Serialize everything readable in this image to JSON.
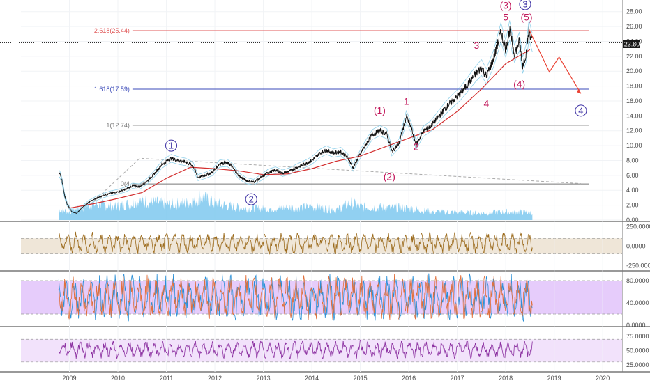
{
  "chart_data": [
    {
      "type": "line",
      "panel": "price",
      "ylim": [
        0,
        29
      ],
      "y_ticks": [
        "0.00",
        "2.00",
        "4.00",
        "6.00",
        "8.00",
        "10.00",
        "12.00",
        "14.00",
        "16.00",
        "18.00",
        "20.00",
        "22.00",
        "24.00",
        "26.00",
        "28.00"
      ],
      "x_ticks": [
        "2009",
        "2010",
        "2011",
        "2012",
        "2013",
        "2014",
        "2015",
        "2016",
        "2017",
        "2018",
        "2019",
        "2020"
      ],
      "last_price_label": "23.80",
      "price_series": [
        [
          2008.8,
          6.2
        ],
        [
          2008.85,
          5.2
        ],
        [
          2008.9,
          3.3
        ],
        [
          2008.95,
          2.2
        ],
        [
          2009.05,
          1.1
        ],
        [
          2009.15,
          0.9
        ],
        [
          2009.25,
          1.6
        ],
        [
          2009.4,
          2.4
        ],
        [
          2009.55,
          2.9
        ],
        [
          2009.7,
          3.3
        ],
        [
          2009.85,
          3.6
        ],
        [
          2010.0,
          3.8
        ],
        [
          2010.15,
          4.1
        ],
        [
          2010.3,
          4.6
        ],
        [
          2010.45,
          4.5
        ],
        [
          2010.6,
          5.2
        ],
        [
          2010.75,
          6.2
        ],
        [
          2010.9,
          7.4
        ],
        [
          2011.0,
          7.9
        ],
        [
          2011.1,
          8.3
        ],
        [
          2011.25,
          8.0
        ],
        [
          2011.4,
          7.8
        ],
        [
          2011.55,
          7.3
        ],
        [
          2011.65,
          5.7
        ],
        [
          2011.8,
          6.0
        ],
        [
          2011.95,
          6.4
        ],
        [
          2012.1,
          7.6
        ],
        [
          2012.25,
          7.7
        ],
        [
          2012.35,
          7.2
        ],
        [
          2012.5,
          5.9
        ],
        [
          2012.65,
          5.3
        ],
        [
          2012.8,
          5.1
        ],
        [
          2012.95,
          5.7
        ],
        [
          2013.1,
          6.4
        ],
        [
          2013.25,
          6.7
        ],
        [
          2013.4,
          6.3
        ],
        [
          2013.55,
          6.6
        ],
        [
          2013.7,
          7.1
        ],
        [
          2013.85,
          7.5
        ],
        [
          2014.0,
          8.0
        ],
        [
          2014.15,
          8.9
        ],
        [
          2014.3,
          9.4
        ],
        [
          2014.45,
          9.0
        ],
        [
          2014.6,
          9.2
        ],
        [
          2014.75,
          8.3
        ],
        [
          2014.85,
          7.0
        ],
        [
          2014.95,
          8.3
        ],
        [
          2015.1,
          10.0
        ],
        [
          2015.25,
          11.5
        ],
        [
          2015.4,
          12.0
        ],
        [
          2015.55,
          11.6
        ],
        [
          2015.65,
          9.2
        ],
        [
          2015.8,
          10.3
        ],
        [
          2015.95,
          13.9
        ],
        [
          2016.05,
          12.4
        ],
        [
          2016.15,
          10.1
        ],
        [
          2016.3,
          11.9
        ],
        [
          2016.45,
          12.6
        ],
        [
          2016.6,
          13.8
        ],
        [
          2016.75,
          15.0
        ],
        [
          2016.9,
          16.0
        ],
        [
          2017.05,
          16.9
        ],
        [
          2017.2,
          18.1
        ],
        [
          2017.35,
          19.4
        ],
        [
          2017.5,
          20.5
        ],
        [
          2017.6,
          19.3
        ],
        [
          2017.75,
          21.7
        ],
        [
          2017.9,
          25.2
        ],
        [
          2018.0,
          23.0
        ],
        [
          2018.08,
          25.5
        ],
        [
          2018.18,
          22.3
        ],
        [
          2018.28,
          24.0
        ],
        [
          2018.35,
          20.8
        ],
        [
          2018.42,
          22.4
        ],
        [
          2018.48,
          25.6
        ],
        [
          2018.52,
          24.5
        ],
        [
          2018.55,
          23.8
        ]
      ],
      "ma_series": [
        [
          2009.0,
          1.6
        ],
        [
          2009.5,
          2.2
        ],
        [
          2010.0,
          2.9
        ],
        [
          2010.5,
          3.7
        ],
        [
          2011.0,
          5.6
        ],
        [
          2011.5,
          7.1
        ],
        [
          2012.0,
          6.9
        ],
        [
          2012.5,
          6.6
        ],
        [
          2013.0,
          6.1
        ],
        [
          2013.5,
          6.2
        ],
        [
          2014.0,
          6.9
        ],
        [
          2014.5,
          7.9
        ],
        [
          2015.0,
          8.6
        ],
        [
          2015.5,
          9.8
        ],
        [
          2016.0,
          11.0
        ],
        [
          2016.5,
          12.2
        ],
        [
          2017.0,
          14.6
        ],
        [
          2017.5,
          17.6
        ],
        [
          2018.0,
          21.0
        ],
        [
          2018.5,
          22.9
        ]
      ],
      "volume_series": [
        [
          2008.8,
          1.5
        ],
        [
          2009.0,
          1.2
        ],
        [
          2009.5,
          2.3
        ],
        [
          2010.0,
          2.0
        ],
        [
          2010.5,
          2.8
        ],
        [
          2011.0,
          2.3
        ],
        [
          2011.5,
          2.5
        ],
        [
          2011.7,
          3.4
        ],
        [
          2012.0,
          2.4
        ],
        [
          2012.5,
          1.8
        ],
        [
          2013.0,
          1.6
        ],
        [
          2013.5,
          1.8
        ],
        [
          2014.0,
          1.9
        ],
        [
          2014.5,
          1.5
        ],
        [
          2014.8,
          2.5
        ],
        [
          2015.0,
          1.9
        ],
        [
          2015.5,
          1.8
        ],
        [
          2016.0,
          1.7
        ],
        [
          2016.5,
          1.2
        ],
        [
          2017.0,
          1.1
        ],
        [
          2017.5,
          1.0
        ],
        [
          2018.0,
          1.2
        ],
        [
          2018.55,
          1.1
        ]
      ],
      "fib_lines": [
        {
          "label": "2.618(25.44)",
          "value": 25.44,
          "color": "#e05a5a"
        },
        {
          "label": "1.618(17.59)",
          "value": 17.59,
          "color": "#3a49b8"
        },
        {
          "label": "1(12.74)",
          "value": 12.74,
          "color": "#777777"
        },
        {
          "label": "0(4",
          "value": 4.85,
          "color": "#777777"
        }
      ],
      "wave_labels_red": [
        {
          "text": "(1)",
          "x": 2015.4,
          "y": 14.3
        },
        {
          "text": "1",
          "x": 2015.95,
          "y": 15.5
        },
        {
          "text": "(2)",
          "x": 2015.6,
          "y": 5.4
        },
        {
          "text": "2",
          "x": 2016.15,
          "y": 9.4
        },
        {
          "text": "3",
          "x": 2017.4,
          "y": 23.0
        },
        {
          "text": "4",
          "x": 2017.6,
          "y": 15.2
        },
        {
          "text": "(3)",
          "x": 2018.0,
          "y": 28.4
        },
        {
          "text": "5",
          "x": 2018.0,
          "y": 26.8
        },
        {
          "text": "(5)",
          "x": 2018.43,
          "y": 26.8
        },
        {
          "text": "(4)",
          "x": 2018.28,
          "y": 17.8
        }
      ],
      "wave_labels_circled": [
        {
          "text": "1",
          "x": 2011.1,
          "y": 10.0
        },
        {
          "text": "2",
          "x": 2012.75,
          "y": 2.8
        },
        {
          "text": "3",
          "x": 2018.4,
          "y": 29.0
        },
        {
          "text": "4",
          "x": 2019.55,
          "y": 14.7
        }
      ],
      "projection": [
        [
          2018.48,
          25.6
        ],
        [
          2018.9,
          19.9
        ],
        [
          2019.1,
          21.9
        ],
        [
          2019.55,
          17.0
        ]
      ],
      "triangle_upper": [
        [
          2009.45,
          2.2
        ],
        [
          2010.45,
          8.3
        ],
        [
          2019.55,
          4.9
        ]
      ],
      "colors": {
        "price": "#111111",
        "ma": "#d32f2f",
        "volume": "#7ec8ee",
        "projection": "#ea4335",
        "fib_red": "#e05a5a",
        "fib_blue": "#3a49b8"
      }
    },
    {
      "type": "line",
      "panel": "cci",
      "ylim": [
        -300,
        300
      ],
      "y_ticks": [
        "250.0000",
        "0.0000",
        "-250.0000"
      ],
      "band": [
        -100,
        100
      ],
      "color": "#9c6b1d"
    },
    {
      "type": "line",
      "panel": "stochastic",
      "ylim": [
        0,
        95
      ],
      "y_ticks": [
        "80.0000",
        "40.0000",
        "0.0000"
      ],
      "band": [
        20,
        80
      ],
      "colors": [
        "#2a8fd6",
        "#e0703c"
      ]
    },
    {
      "type": "line",
      "panel": "rsi",
      "ylim": [
        15,
        90
      ],
      "y_ticks": [
        "75.0000",
        "50.0000",
        "25.0000"
      ],
      "band": [
        30,
        70
      ],
      "color": "#8b2fa0"
    }
  ]
}
